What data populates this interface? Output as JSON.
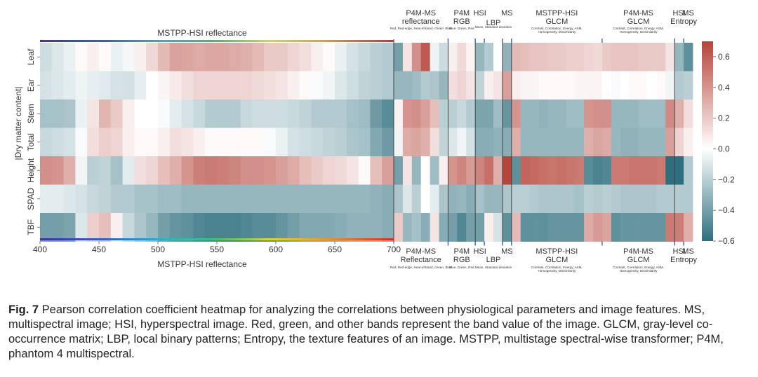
{
  "chart_data": {
    "type": "heatmap",
    "rows": [
      "Leaf",
      "Ear",
      "Stem",
      "Total",
      "Height",
      "SPAD",
      "TBF"
    ],
    "row_group_label": "|Dry matter content|",
    "colorbar": {
      "min": -0.6,
      "max": 0.7,
      "ticks": [
        0.6,
        0.4,
        0.2,
        0.0,
        -0.2,
        -0.4,
        -0.6
      ],
      "tick_labels": [
        "0.6",
        "0.4",
        "0.2",
        "0.0",
        "−0.2",
        "−0.4",
        "−0.6"
      ],
      "colors": [
        "#2e6f7e",
        "#ffffff",
        "#b5453a"
      ]
    },
    "spectral_section": {
      "label_top": "MSTPP-HSI reflectance",
      "label_bottom": "MSTPP-HSI reflectance",
      "x_ticks": [
        "400",
        "450",
        "500",
        "550",
        "600",
        "650",
        "700"
      ],
      "x_range": [
        400,
        700
      ],
      "n_cols": 30,
      "values": [
        [
          -0.14,
          -0.1,
          -0.06,
          0.02,
          0.06,
          0.02,
          -0.06,
          -0.03,
          0.06,
          0.15,
          0.26,
          0.35,
          0.34,
          0.32,
          0.33,
          0.33,
          0.32,
          0.3,
          0.26,
          0.2,
          0.2,
          0.16,
          0.12,
          0.06,
          0.02,
          -0.06,
          -0.12,
          -0.16,
          -0.2,
          -0.22
        ],
        [
          -0.12,
          -0.1,
          -0.08,
          -0.05,
          -0.07,
          -0.09,
          -0.12,
          -0.13,
          -0.07,
          0.0,
          0.04,
          0.08,
          0.12,
          0.16,
          0.16,
          0.16,
          0.16,
          0.16,
          0.14,
          0.12,
          0.1,
          0.06,
          0.02,
          -0.02,
          -0.04,
          -0.1,
          -0.14,
          -0.18,
          -0.2,
          -0.22
        ],
        [
          -0.26,
          -0.26,
          -0.24,
          -0.06,
          0.1,
          0.28,
          0.2,
          0.06,
          0.0,
          0.0,
          -0.02,
          -0.08,
          -0.12,
          -0.16,
          -0.22,
          -0.22,
          -0.22,
          -0.16,
          -0.14,
          -0.14,
          -0.14,
          -0.16,
          -0.18,
          -0.22,
          -0.22,
          -0.22,
          -0.26,
          -0.28,
          -0.42,
          -0.48
        ],
        [
          -0.16,
          -0.14,
          -0.12,
          -0.02,
          0.12,
          0.18,
          0.16,
          0.06,
          0.02,
          0.02,
          0.06,
          0.12,
          0.1,
          0.06,
          0.02,
          0.02,
          0.02,
          0.02,
          0.02,
          -0.02,
          -0.06,
          -0.12,
          -0.14,
          -0.16,
          -0.18,
          -0.2,
          -0.24,
          -0.26,
          -0.36,
          -0.42
        ],
        [
          0.42,
          0.4,
          0.3,
          -0.04,
          -0.2,
          -0.18,
          -0.26,
          -0.08,
          0.12,
          0.16,
          0.24,
          0.3,
          0.4,
          0.48,
          0.5,
          0.48,
          0.46,
          0.42,
          0.42,
          0.4,
          0.36,
          0.32,
          0.24,
          0.2,
          0.16,
          0.14,
          0.1,
          0.02,
          0.24,
          0.36
        ],
        [
          -0.08,
          -0.08,
          -0.1,
          -0.12,
          -0.16,
          -0.18,
          -0.22,
          -0.22,
          -0.26,
          -0.26,
          -0.28,
          -0.28,
          -0.3,
          -0.3,
          -0.3,
          -0.3,
          -0.3,
          -0.3,
          -0.3,
          -0.3,
          -0.3,
          -0.3,
          -0.3,
          -0.3,
          -0.3,
          -0.3,
          -0.3,
          -0.3,
          -0.32,
          -0.34
        ],
        [
          -0.4,
          -0.4,
          -0.38,
          -0.1,
          0.18,
          0.24,
          0.06,
          -0.16,
          -0.24,
          -0.3,
          -0.4,
          -0.44,
          -0.46,
          -0.5,
          -0.52,
          -0.52,
          -0.52,
          -0.5,
          -0.48,
          -0.48,
          -0.44,
          -0.4,
          -0.36,
          -0.36,
          -0.36,
          -0.34,
          -0.32,
          -0.32,
          -0.32,
          -0.34
        ]
      ]
    },
    "feature_groups": [
      {
        "id": "p4m-ms-reflectance",
        "top": "P4M-MS\nreflectance",
        "bottom": "P4M-MS\nReflectance",
        "desc_top": "Red, Red-edge, Near-infrared, Green, Blue",
        "desc_bottom": "Red, Red-edge, Near-infrared, Green, Blue",
        "values": [
          [
            -0.4,
            0.1,
            0.42,
            0.62,
            -0.05,
            -0.15
          ],
          [
            -0.3,
            -0.3,
            -0.28,
            -0.22,
            -0.24,
            -0.3
          ],
          [
            0.05,
            0.4,
            0.42,
            0.36,
            0.24,
            -0.2
          ],
          [
            -0.04,
            0.32,
            0.34,
            0.3,
            0.12,
            -0.18
          ],
          [
            -0.4,
            0.1,
            -0.3,
            0.0,
            -0.28,
            0.06
          ],
          [
            -0.24,
            -0.1,
            -0.2,
            0.0,
            -0.08,
            -0.24
          ],
          [
            0.2,
            -0.3,
            -0.26,
            -0.34,
            0.1,
            -0.35
          ]
        ]
      },
      {
        "id": "p4m-rgb",
        "top": "P4M\nRGB",
        "bottom": "P4M\nRGB",
        "desc_top": "Blue, Green, Red",
        "desc_bottom": "Blue, Green, Red",
        "values": [
          [
            0.06,
            0.14,
            0.04
          ],
          [
            0.12,
            0.16,
            0.1
          ],
          [
            -0.2,
            -0.16,
            -0.22
          ],
          [
            -0.1,
            -0.04,
            -0.12
          ],
          [
            0.4,
            0.46,
            0.38
          ],
          [
            -0.32,
            -0.3,
            -0.34
          ],
          [
            -0.4,
            -0.5,
            -0.4
          ]
        ]
      },
      {
        "id": "hsi",
        "top": "HSI",
        "bottom": "HSI",
        "desc_top": "",
        "desc_bottom": "",
        "values": [
          [
            -0.3
          ],
          [
            -0.18
          ],
          [
            -0.38
          ],
          [
            -0.34
          ],
          [
            0.46
          ],
          [
            -0.26
          ],
          [
            -0.4
          ]
        ]
      },
      {
        "id": "lbp",
        "top": "LBP",
        "bottom": "",
        "desc_top": "Mean, Standard deviation",
        "desc_bottom": "Mean, Standard deviation",
        "values": [
          [
            -0.22,
            0.0
          ],
          [
            0.06,
            0.1
          ],
          [
            -0.38,
            -0.28
          ],
          [
            -0.34,
            -0.32
          ],
          [
            0.54,
            0.3
          ],
          [
            -0.3,
            -0.3
          ],
          [
            0.06,
            -0.12
          ]
        ]
      },
      {
        "id": "ms",
        "top": "MS",
        "bottom": "MS",
        "desc_top": "",
        "desc_bottom": "",
        "values": [
          [
            -0.32
          ],
          [
            0.36
          ],
          [
            -0.44
          ],
          [
            -0.34
          ],
          [
            0.7
          ],
          [
            -0.24
          ],
          [
            -0.46
          ]
        ]
      },
      {
        "id": "mstpp-hsi-glcm",
        "top": "MSTPP-HSI\nGLCM",
        "bottom": "MSTPP-HSI\nGLCM",
        "desc_top": "Contrast, Correlation, Energy, ASM,\nHomogeneity, Dissimilarity",
        "desc_bottom": "Contrast, Correlation, Energy, ASM,\nHomogeneity, Dissimilarity",
        "values": [
          [
            0.26,
            0.24,
            0.22,
            0.22,
            0.2,
            0.2,
            0.18,
            0.18,
            0.16,
            0.14
          ],
          [
            0.06,
            0.04,
            0.04,
            0.02,
            0.02,
            0.02,
            0.02,
            0.04,
            0.04,
            0.04
          ],
          [
            0.4,
            -0.3,
            -0.3,
            -0.32,
            -0.3,
            -0.3,
            -0.28,
            -0.28,
            0.4,
            0.42
          ],
          [
            0.3,
            -0.3,
            -0.3,
            -0.3,
            -0.3,
            -0.3,
            -0.3,
            -0.3,
            0.3,
            0.34
          ],
          [
            -0.46,
            0.58,
            0.56,
            0.54,
            0.52,
            0.54,
            0.52,
            0.5,
            -0.48,
            -0.52
          ],
          [
            -0.2,
            -0.2,
            -0.22,
            -0.24,
            -0.24,
            -0.24,
            -0.24,
            -0.26,
            -0.2,
            -0.22
          ],
          [
            0.26,
            -0.46,
            -0.46,
            -0.46,
            -0.44,
            -0.44,
            -0.44,
            -0.44,
            0.32,
            0.38
          ]
        ]
      },
      {
        "id": "p4m-ms-glcm",
        "top": "P4M-MS\nGLCM",
        "bottom": "P4M-MS\nGLCM",
        "desc_top": "Contrast, Correlation, Energy, ASM,\nHomogeneity, Dissimilarity",
        "desc_bottom": "Contrast, Correlation, Energy, ASM,\nHomogeneity, Dissimilarity",
        "values": [
          [
            0.2,
            0.22,
            0.22,
            0.22,
            0.2,
            0.2,
            0.2,
            0.1
          ],
          [
            0.0,
            -0.02,
            0.0,
            0.02,
            0.02,
            0.0,
            0.02,
            -0.04
          ],
          [
            0.42,
            -0.3,
            -0.3,
            -0.3,
            -0.28,
            -0.28,
            -0.28,
            0.44
          ],
          [
            0.32,
            -0.3,
            -0.32,
            -0.32,
            -0.3,
            -0.3,
            -0.3,
            0.36
          ],
          [
            -0.5,
            0.5,
            0.5,
            0.52,
            0.52,
            0.52,
            0.5,
            -0.6
          ],
          [
            -0.2,
            -0.22,
            -0.24,
            -0.24,
            -0.24,
            -0.24,
            -0.22,
            -0.22
          ],
          [
            0.34,
            -0.46,
            -0.44,
            -0.44,
            -0.44,
            -0.44,
            -0.44,
            0.5
          ]
        ]
      },
      {
        "id": "hsi-entropy",
        "top": "HSI",
        "bottom": "HSI",
        "desc_top": "",
        "desc_bottom": "",
        "values": [
          [
            -0.3
          ],
          [
            -0.22
          ],
          [
            0.3
          ],
          [
            0.16
          ],
          [
            -0.6
          ],
          [
            -0.22
          ],
          [
            0.48
          ]
        ]
      },
      {
        "id": "ms-entropy",
        "top": "MS",
        "bottom": "MS",
        "desc_top": "",
        "desc_bottom": "",
        "values": [
          [
            -0.46
          ],
          [
            -0.2
          ],
          [
            0.12
          ],
          [
            0.06
          ],
          [
            -0.22
          ],
          [
            -0.22
          ],
          [
            0.3
          ]
        ]
      }
    ],
    "entropy_label": "Entropy"
  },
  "caption": {
    "label": "Fig. 7",
    "text": " Pearson correlation coefficient heatmap for analyzing the correlations between physiological parameters and image features. MS, multispectral image; HSI, hyperspectral image.  Red, green, and other bands represent the band value of the image.  GLCM, gray-level co-occurrence matrix; LBP, local binary patterns; Entropy, the texture features of an image.  MSTPP, multistage spectral-wise transformer; P4M, phantom 4 multispectral."
  }
}
